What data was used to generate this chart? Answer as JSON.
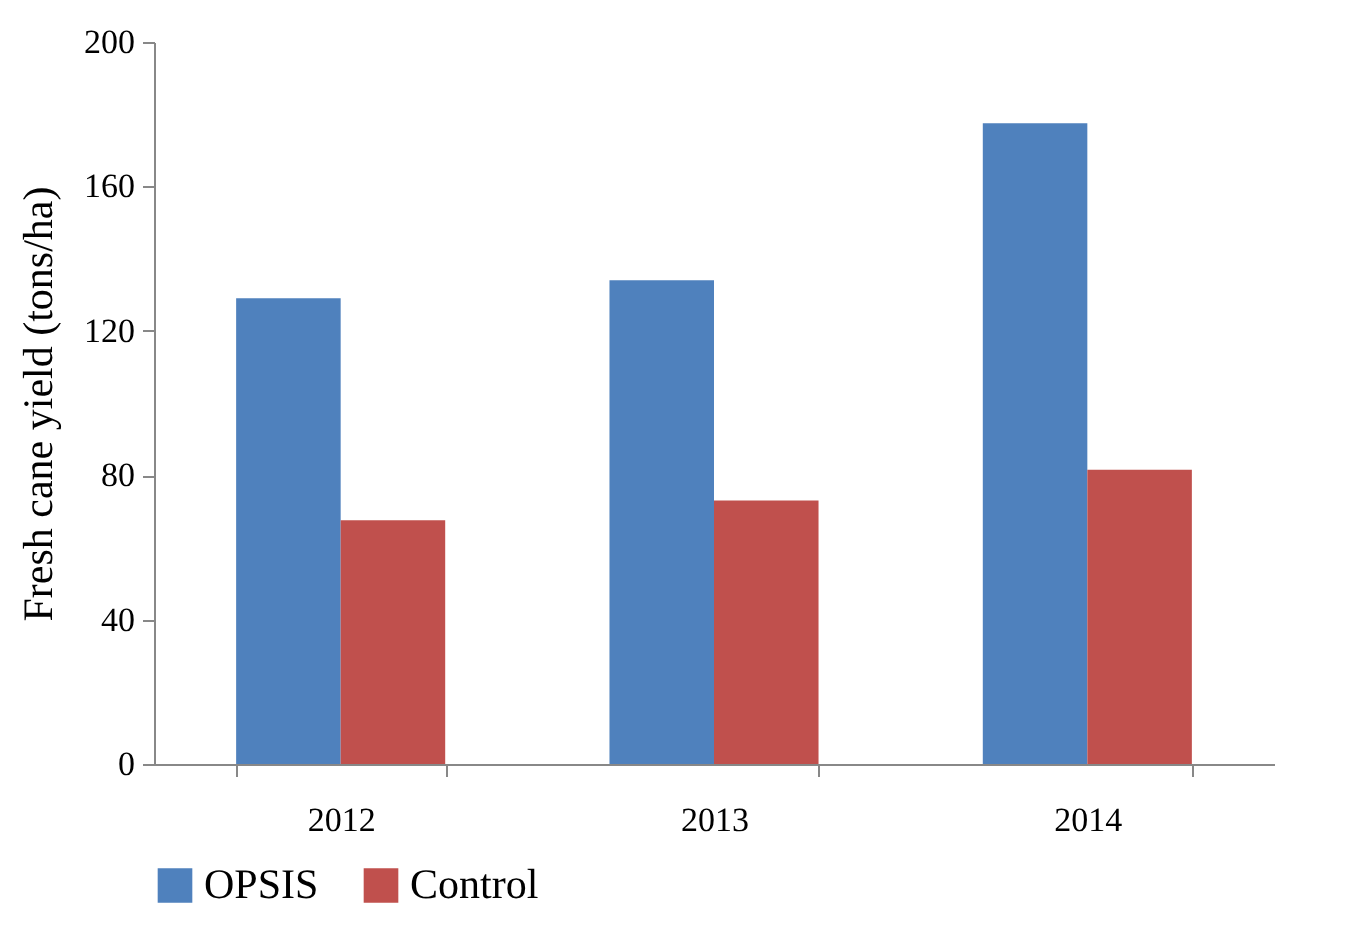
{
  "chart_data": {
    "type": "bar",
    "ylabel": "Fresh cane yield (tons/ha)",
    "categories": [
      "2012",
      "2013",
      "2014"
    ],
    "series": [
      {
        "name": "OPSIS",
        "color": "#4f81bd",
        "values": [
          129,
          134,
          177.5
        ]
      },
      {
        "name": "Control",
        "color": "#c0504d",
        "values": [
          67.5,
          73,
          81.5
        ]
      }
    ],
    "ylim": [
      0,
      200
    ],
    "yticks": [
      0,
      40,
      80,
      120,
      160,
      200
    ],
    "grid": false,
    "legend": "bottom"
  }
}
